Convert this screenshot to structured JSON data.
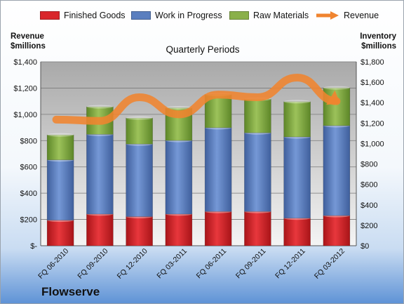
{
  "chart_data": {
    "type": "bar",
    "stacked": true,
    "title": "Quarterly Periods",
    "ylabel_left": "Revenue\n$millions",
    "ylabel_right": "Inventory\n$millions",
    "company": "Flowserve",
    "categories": [
      "FQ 06-2010",
      "FQ 09-2010",
      "FQ 12-2010",
      "FQ 03-2011",
      "FQ 06-2011",
      "FQ 09-2011",
      "FQ 12-2011",
      "FQ 03-2012"
    ],
    "left_axis": {
      "min": 0,
      "max": 1400,
      "step": 200,
      "tick_labels": [
        "$-",
        "$200",
        "$400",
        "$600",
        "$800",
        "$1,000",
        "$1,200",
        "$1,400"
      ]
    },
    "right_axis": {
      "min": 0,
      "max": 1800,
      "step": 200,
      "tick_labels": [
        "$0",
        "$200",
        "$400",
        "$600",
        "$800",
        "$1,000",
        "$1,200",
        "$1,400",
        "$1,600",
        "$1,800"
      ]
    },
    "series": [
      {
        "name": "Finished Goods",
        "axis": "right",
        "type": "bar",
        "color": "#d9262b",
        "values": [
          250,
          310,
          285,
          310,
          335,
          335,
          270,
          295
        ]
      },
      {
        "name": "Work in Progress",
        "axis": "right",
        "type": "bar",
        "color": "#5b7fbf",
        "values": [
          590,
          780,
          710,
          720,
          820,
          770,
          795,
          880
        ]
      },
      {
        "name": "Raw Materials",
        "axis": "right",
        "type": "bar",
        "color": "#8ab04a",
        "values": [
          245,
          270,
          255,
          320,
          325,
          330,
          345,
          370
        ]
      },
      {
        "name": "Revenue",
        "axis": "left",
        "type": "line",
        "color": "#f0842f",
        "values": [
          960,
          950,
          1130,
          1000,
          1150,
          1130,
          1280,
          1100
        ]
      }
    ],
    "legend_position": "top",
    "grid": true
  }
}
